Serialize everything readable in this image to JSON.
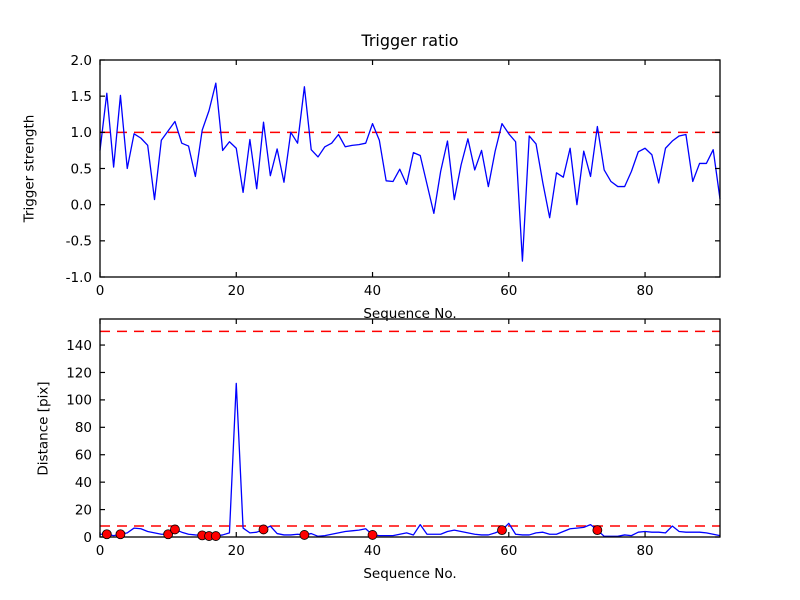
{
  "colors": {
    "series_line": "#0000ff",
    "threshold_line": "#ff0000",
    "marker_face": "#ff0000",
    "marker_edge": "#000000",
    "axis": "#000000",
    "background": "#ffffff"
  },
  "chart_data": [
    {
      "name": "trigger-ratio",
      "type": "line",
      "title": "Trigger ratio",
      "xlabel": "Sequence No.",
      "ylabel": "Trigger strength",
      "xlim": [
        0,
        91
      ],
      "ylim": [
        -1.0,
        2.0
      ],
      "xticks": [
        0,
        20,
        40,
        60,
        80
      ],
      "xtick_labels": [
        "0",
        "20",
        "40",
        "60",
        "80"
      ],
      "yticks": [
        -1.0,
        -0.5,
        0.0,
        0.5,
        1.0,
        1.5,
        2.0
      ],
      "ytick_labels": [
        "-1.0",
        "-0.5",
        "0.0",
        "0.5",
        "1.0",
        "1.5",
        "2.0"
      ],
      "grid": false,
      "legend": null,
      "thresholds": [
        1.0
      ],
      "series": [
        {
          "name": "trigger strength",
          "color": "#0000ff",
          "values": [
            0.75,
            1.54,
            0.52,
            1.51,
            0.5,
            0.98,
            0.92,
            0.82,
            0.07,
            0.89,
            1.02,
            1.15,
            0.85,
            0.81,
            0.39,
            1.03,
            1.3,
            1.68,
            0.75,
            0.87,
            0.78,
            0.17,
            0.9,
            0.22,
            1.14,
            0.4,
            0.77,
            0.31,
            1.0,
            0.85,
            1.63,
            0.76,
            0.66,
            0.8,
            0.85,
            0.97,
            0.8,
            0.82,
            0.83,
            0.85,
            1.12,
            0.89,
            0.33,
            0.32,
            0.49,
            0.28,
            0.72,
            0.68,
            0.28,
            -0.12,
            0.46,
            0.88,
            0.07,
            0.55,
            0.91,
            0.48,
            0.75,
            0.25,
            0.74,
            1.12,
            0.98,
            0.87,
            -0.78,
            0.95,
            0.84,
            0.3,
            -0.18,
            0.44,
            0.38,
            0.78,
            0.0,
            0.74,
            0.39,
            1.08,
            0.48,
            0.32,
            0.25,
            0.25,
            0.46,
            0.73,
            0.78,
            0.69,
            0.3,
            0.78,
            0.88,
            0.95,
            0.97,
            0.32,
            0.57,
            0.57,
            0.76,
            0.08
          ]
        }
      ],
      "marker_x": []
    },
    {
      "name": "distance",
      "type": "line",
      "title": "",
      "xlabel": "Sequence No.",
      "ylabel": "Distance [pix]",
      "xlim": [
        0,
        91
      ],
      "ylim": [
        0,
        159
      ],
      "xticks": [
        0,
        20,
        40,
        60,
        80
      ],
      "xtick_labels": [
        "0",
        "20",
        "40",
        "60",
        "80"
      ],
      "yticks": [
        0,
        20,
        40,
        60,
        80,
        100,
        120,
        140
      ],
      "ytick_labels": [
        "0",
        "20",
        "40",
        "60",
        "80",
        "100",
        "120",
        "140"
      ],
      "grid": false,
      "legend": null,
      "thresholds": [
        150,
        8
      ],
      "series": [
        {
          "name": "distance",
          "color": "#0000ff",
          "values": [
            2,
            2,
            1,
            2,
            3,
            6.5,
            6,
            4,
            3,
            2,
            2,
            5.5,
            3.5,
            2,
            1.5,
            1.2,
            0.7,
            0.7,
            1.5,
            3,
            112,
            6.5,
            3,
            3.5,
            5.5,
            8,
            2.5,
            1.5,
            1.5,
            2,
            1.5,
            2.5,
            0.5,
            1,
            2,
            3,
            4,
            4.5,
            5,
            6,
            1.5,
            1,
            1,
            1,
            2,
            3,
            1.5,
            9,
            2,
            2,
            2,
            4,
            5,
            4,
            3,
            2,
            1.5,
            1.5,
            3,
            5,
            10,
            2,
            1.5,
            1.5,
            3,
            3.5,
            2,
            2,
            4,
            6,
            6.5,
            7,
            9,
            5,
            0.5,
            0.5,
            0.5,
            1.5,
            1,
            3.5,
            4,
            3.5,
            3.5,
            3,
            8,
            4,
            3.5,
            3.5,
            3.5,
            3,
            2,
            1
          ]
        }
      ],
      "marker_x": [
        1,
        3,
        10,
        11,
        15,
        16,
        17,
        24,
        30,
        40,
        59,
        73
      ]
    }
  ]
}
